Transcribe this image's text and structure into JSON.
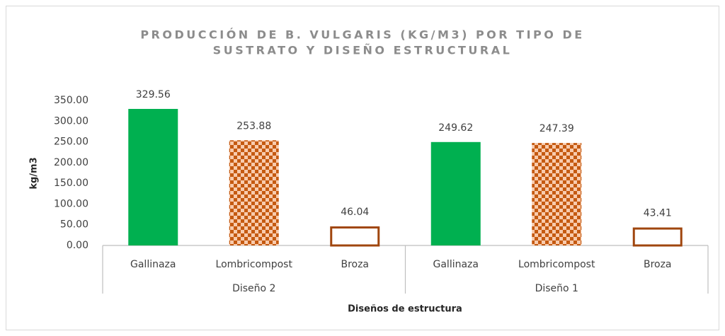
{
  "chart_data": {
    "type": "bar",
    "title": [
      "PRODUCCIÓN DE B. VULGARIS (KG/M3) POR TIPO DE",
      "SUSTRATO Y DISEÑO ESTRUCTURAL"
    ],
    "x_label": "Diseños de estructura",
    "y_label": "kg/m3",
    "groups": [
      {
        "name": "Diseño 2",
        "categories": [
          "Gallinaza",
          "Lombricompost",
          "Broza"
        ],
        "values": [
          329.56,
          253.88,
          46.04
        ]
      },
      {
        "name": "Diseño 1",
        "categories": [
          "Gallinaza",
          "Lombricompost",
          "Broza"
        ],
        "values": [
          249.62,
          247.39,
          43.41
        ]
      }
    ],
    "colors": [
      "#00b050",
      "#c55a11",
      "#a0460e"
    ],
    "fills": [
      "solid",
      "checker",
      "outline"
    ],
    "ylim": [
      0,
      350
    ],
    "yticks": [
      {
        "value": 0,
        "label": "0.00"
      },
      {
        "value": 50,
        "label": "50.00"
      },
      {
        "value": 100,
        "label": "100.00"
      },
      {
        "value": 150,
        "label": "150.00"
      },
      {
        "value": 200,
        "label": "200.00"
      },
      {
        "value": 250,
        "label": "250.00"
      },
      {
        "value": 300,
        "label": "300.00"
      },
      {
        "value": 350,
        "label": "350.00"
      }
    ],
    "grid": false
  }
}
